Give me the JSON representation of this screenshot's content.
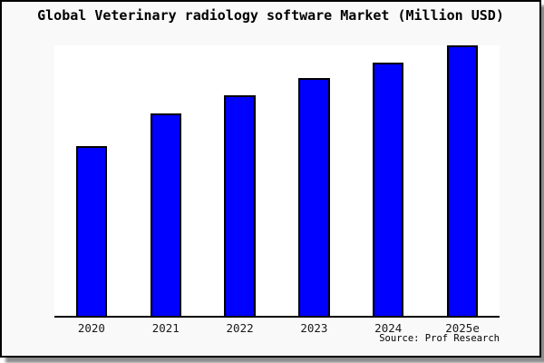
{
  "chart_data": {
    "type": "bar",
    "title": "Global Veterinary radiology software Market (Million USD)",
    "categories": [
      "2020",
      "2021",
      "2022",
      "2023",
      "2024",
      "2025e"
    ],
    "values": [
      62.8,
      75.0,
      81.4,
      87.8,
      93.7,
      100
    ],
    "values_note": "relative index estimated from bar heights; no y-axis labels shown, 2025e = 100",
    "xlabel": "",
    "ylabel": "",
    "ylim": [
      0,
      100
    ],
    "grid": false,
    "legend": false,
    "y_axis_visible": false,
    "source": "Source: Prof Research",
    "bar_color": "#0000ff",
    "bar_edge_color": "#000000"
  },
  "colors": {
    "figure_background": "#f9f9f9",
    "plot_background": "#ffffff",
    "border": "#000000",
    "bar_fill": "#0000ff",
    "bar_edge": "#000000",
    "text": "#000000"
  }
}
